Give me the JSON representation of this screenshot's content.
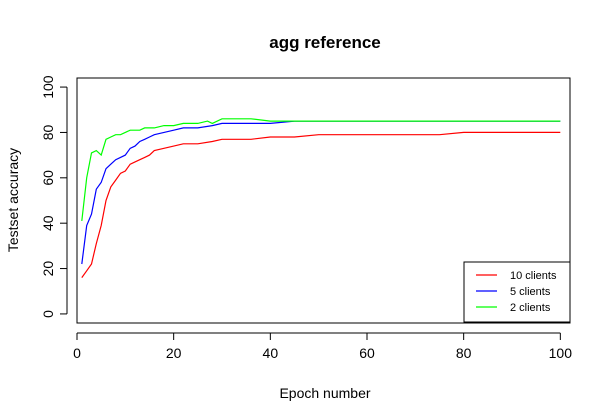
{
  "chart_data": {
    "type": "line",
    "title": "agg reference",
    "xlabel": "Epoch number",
    "ylabel": "Testset accuracy",
    "xlim": [
      0,
      102
    ],
    "ylim": [
      -4,
      104
    ],
    "x_ticks": [
      0,
      20,
      40,
      60,
      80,
      100
    ],
    "y_ticks": [
      0,
      20,
      40,
      60,
      80,
      100
    ],
    "grid": false,
    "legend_position": "bottom-right",
    "series": [
      {
        "name": "10 clients",
        "color": "#ff0000",
        "points": [
          [
            1,
            16
          ],
          [
            2,
            19
          ],
          [
            3,
            22
          ],
          [
            4,
            31
          ],
          [
            5,
            39
          ],
          [
            6,
            50
          ],
          [
            7,
            56
          ],
          [
            8,
            59
          ],
          [
            9,
            62
          ],
          [
            10,
            63
          ],
          [
            11,
            66
          ],
          [
            12,
            67
          ],
          [
            13,
            68
          ],
          [
            14,
            69
          ],
          [
            15,
            70
          ],
          [
            16,
            72
          ],
          [
            18,
            73
          ],
          [
            20,
            74
          ],
          [
            22,
            75
          ],
          [
            25,
            75
          ],
          [
            28,
            76
          ],
          [
            30,
            77
          ],
          [
            33,
            77
          ],
          [
            36,
            77
          ],
          [
            40,
            78
          ],
          [
            45,
            78
          ],
          [
            50,
            79
          ],
          [
            55,
            79
          ],
          [
            60,
            79
          ],
          [
            65,
            79
          ],
          [
            70,
            79
          ],
          [
            75,
            79
          ],
          [
            80,
            80
          ],
          [
            85,
            80
          ],
          [
            90,
            80
          ],
          [
            95,
            80
          ],
          [
            100,
            80
          ]
        ]
      },
      {
        "name": "5 clients",
        "color": "#0000ff",
        "points": [
          [
            1,
            22
          ],
          [
            2,
            39
          ],
          [
            3,
            44
          ],
          [
            4,
            55
          ],
          [
            5,
            58
          ],
          [
            6,
            64
          ],
          [
            7,
            66
          ],
          [
            8,
            68
          ],
          [
            9,
            69
          ],
          [
            10,
            70
          ],
          [
            11,
            73
          ],
          [
            12,
            74
          ],
          [
            13,
            76
          ],
          [
            14,
            77
          ],
          [
            15,
            78
          ],
          [
            16,
            79
          ],
          [
            18,
            80
          ],
          [
            20,
            81
          ],
          [
            22,
            82
          ],
          [
            25,
            82
          ],
          [
            28,
            83
          ],
          [
            30,
            84
          ],
          [
            33,
            84
          ],
          [
            36,
            84
          ],
          [
            40,
            84
          ],
          [
            45,
            85
          ],
          [
            50,
            85
          ],
          [
            55,
            85
          ],
          [
            60,
            85
          ],
          [
            65,
            85
          ],
          [
            70,
            85
          ],
          [
            75,
            85
          ],
          [
            80,
            85
          ],
          [
            85,
            85
          ],
          [
            90,
            85
          ],
          [
            95,
            85
          ],
          [
            100,
            85
          ]
        ]
      },
      {
        "name": "2 clients",
        "color": "#00ff00",
        "points": [
          [
            1,
            41
          ],
          [
            2,
            60
          ],
          [
            3,
            71
          ],
          [
            4,
            72
          ],
          [
            5,
            70
          ],
          [
            6,
            77
          ],
          [
            7,
            78
          ],
          [
            8,
            79
          ],
          [
            9,
            79
          ],
          [
            10,
            80
          ],
          [
            11,
            81
          ],
          [
            12,
            81
          ],
          [
            13,
            81
          ],
          [
            14,
            82
          ],
          [
            15,
            82
          ],
          [
            16,
            82
          ],
          [
            18,
            83
          ],
          [
            20,
            83
          ],
          [
            22,
            84
          ],
          [
            25,
            84
          ],
          [
            27,
            85
          ],
          [
            28,
            84
          ],
          [
            30,
            86
          ],
          [
            33,
            86
          ],
          [
            36,
            86
          ],
          [
            40,
            85
          ],
          [
            45,
            85
          ],
          [
            50,
            85
          ],
          [
            55,
            85
          ],
          [
            60,
            85
          ],
          [
            65,
            85
          ],
          [
            70,
            85
          ],
          [
            75,
            85
          ],
          [
            80,
            85
          ],
          [
            85,
            85
          ],
          [
            90,
            85
          ],
          [
            95,
            85
          ],
          [
            100,
            85
          ]
        ]
      }
    ]
  }
}
